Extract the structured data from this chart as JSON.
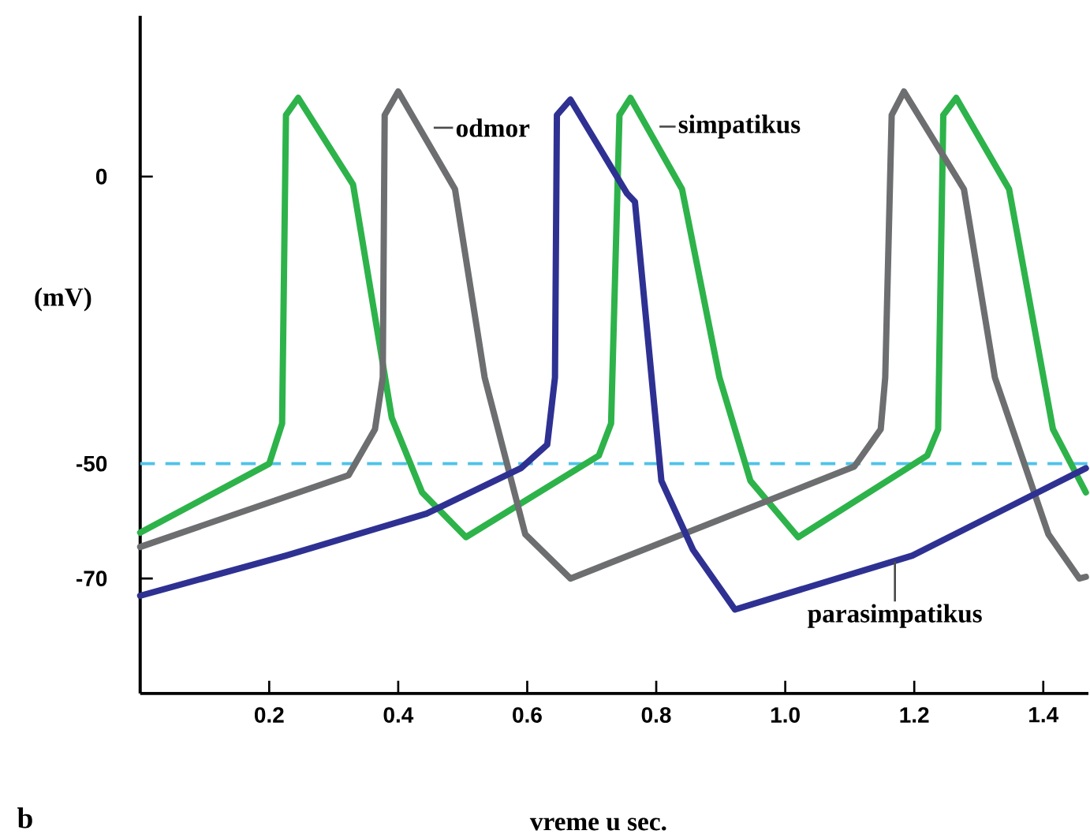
{
  "chart_data": {
    "type": "line",
    "xlabel": "vreme u sec.",
    "ylabel": "(mV)",
    "xlim": [
      0,
      1.47
    ],
    "ylim": [
      -90,
      28
    ],
    "xticks": [
      0.2,
      0.4,
      0.6,
      0.8,
      {
        "value": 1,
        "label": "1.0"
      },
      1.2,
      1.4
    ],
    "yticks": [
      0,
      -50,
      -70
    ],
    "grid": false,
    "legend": false,
    "ref_lines": [
      {
        "axis": "y",
        "value": -50,
        "color": "#4fc3e8",
        "line_style": "dashed"
      }
    ],
    "annotations": [
      "b"
    ],
    "series": [
      {
        "name": "simpatikus",
        "color": "#2db34a",
        "x": [
          0,
          0.2,
          0.22,
          0.226,
          0.245,
          0.33,
          0.39,
          0.437,
          0.505,
          0.711,
          0.73,
          0.743,
          0.76,
          0.84,
          0.898,
          0.946,
          1.02,
          1.22,
          1.237,
          1.245,
          1.265,
          1.347,
          1.415,
          1.466
        ],
        "values": [
          -62,
          -50,
          -43,
          10.7,
          13.7,
          -1.4,
          -42,
          -55,
          -62.8,
          -48.6,
          -43,
          10.7,
          13.7,
          -2.2,
          -35,
          -53,
          -62.8,
          -48.6,
          -44,
          10.7,
          13.7,
          -2.2,
          -44,
          -55
        ]
      },
      {
        "name": "odmor",
        "color": "#6d6e70",
        "x": [
          0,
          0.323,
          0.364,
          0.376,
          0.379,
          0.4,
          0.488,
          0.534,
          0.597,
          0.667,
          1.107,
          1.148,
          1.155,
          1.165,
          1.184,
          1.277,
          1.325,
          1.408,
          1.456,
          1.466
        ],
        "values": [
          -64.5,
          -52,
          -44,
          -35,
          10.7,
          14.8,
          -2.2,
          -35,
          -62.3,
          -70,
          -50.5,
          -44,
          -35,
          10.7,
          14.8,
          -2.2,
          -35,
          -62.3,
          -70,
          -69.7
        ]
      },
      {
        "name": "parasimpatikus",
        "color": "#2e3192",
        "x": [
          0,
          0.226,
          0.444,
          0.59,
          0.631,
          0.643,
          0.646,
          0.667,
          0.755,
          0.767,
          0.808,
          0.857,
          0.922,
          1.197,
          1.466
        ],
        "values": [
          -73,
          -66,
          -58.7,
          -50.8,
          -46.7,
          -35,
          10.7,
          13.4,
          -3,
          -4.4,
          -53,
          -65,
          -75.4,
          -66,
          -50.8
        ]
      }
    ]
  }
}
